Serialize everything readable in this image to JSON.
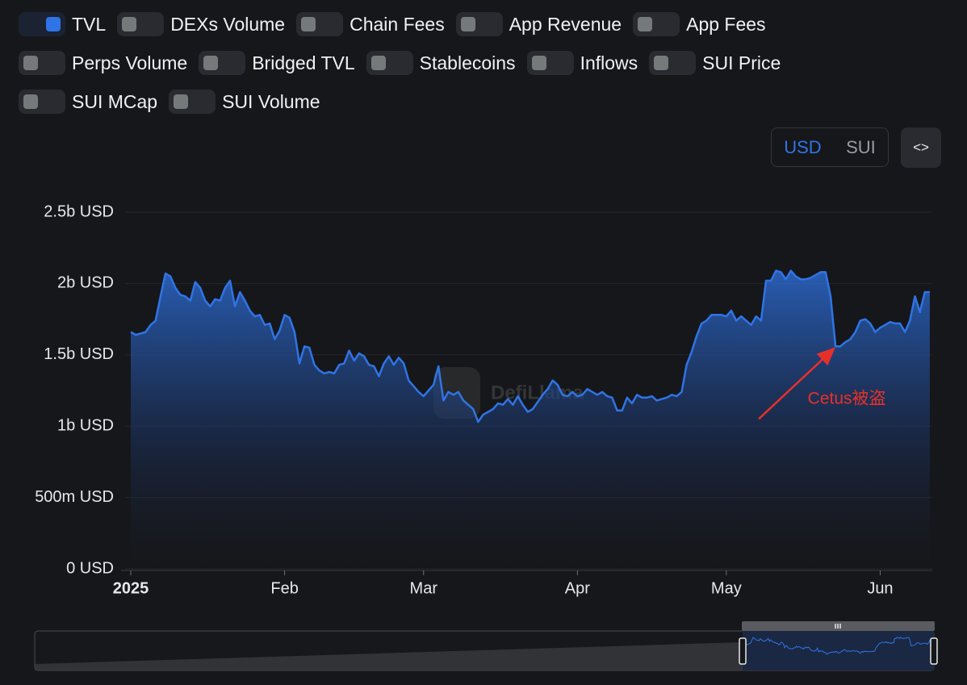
{
  "toggles": [
    {
      "label": "TVL",
      "on": true
    },
    {
      "label": "DEXs Volume",
      "on": false
    },
    {
      "label": "Chain Fees",
      "on": false
    },
    {
      "label": "App Revenue",
      "on": false
    },
    {
      "label": "App Fees",
      "on": false
    },
    {
      "label": "Perps Volume",
      "on": false
    },
    {
      "label": "Bridged TVL",
      "on": false
    },
    {
      "label": "Stablecoins",
      "on": false
    },
    {
      "label": "Inflows",
      "on": false
    },
    {
      "label": "SUI Price",
      "on": false
    },
    {
      "label": "SUI MCap",
      "on": false
    },
    {
      "label": "SUI Volume",
      "on": false
    }
  ],
  "currency_options": [
    {
      "label": "USD",
      "active": true
    },
    {
      "label": "SUI",
      "active": false
    }
  ],
  "embed_button": "<>",
  "chart_data": {
    "type": "area",
    "watermark": "DefiLlama",
    "color": "#2f74e6",
    "x": [
      0,
      1,
      2,
      3,
      4,
      5,
      6,
      7,
      8,
      9,
      10,
      11,
      12,
      13,
      14,
      15,
      16,
      17,
      18,
      19,
      20,
      21,
      22,
      23,
      24,
      25,
      26,
      27,
      28,
      29,
      30,
      31,
      32,
      33,
      34,
      35,
      36,
      37,
      38,
      39,
      40,
      41,
      42,
      43,
      44,
      45,
      46,
      47,
      48,
      49,
      50,
      51,
      52,
      53,
      54,
      55,
      56,
      57,
      58,
      59,
      60,
      61,
      62,
      63,
      64,
      65,
      66,
      67,
      68,
      69,
      70,
      71,
      72,
      73,
      74,
      75,
      76,
      77,
      78,
      79,
      80,
      81,
      82,
      83,
      84,
      85,
      86,
      87,
      88,
      89,
      90,
      91,
      92,
      93,
      94,
      95,
      96,
      97,
      98,
      99,
      100,
      101,
      102,
      103,
      104,
      105,
      106,
      107,
      108,
      109,
      110,
      111,
      112,
      113,
      114,
      115,
      116,
      117,
      118,
      119,
      120,
      121,
      122,
      123,
      124,
      125,
      126,
      127,
      128,
      129,
      130,
      131,
      132,
      133,
      134,
      135,
      136,
      137,
      138,
      139,
      140,
      141,
      142,
      143,
      144,
      145,
      146,
      147,
      148,
      149,
      150,
      151,
      152,
      153,
      154,
      155,
      156,
      157,
      158,
      159,
      160,
      161
    ],
    "values": [
      1660000000.0,
      1640000000.0,
      1650000000.0,
      1660000000.0,
      1710000000.0,
      1740000000.0,
      1910000000.0,
      2070000000.0,
      2050000000.0,
      1970000000.0,
      1920000000.0,
      1910000000.0,
      1880000000.0,
      2010000000.0,
      1970000000.0,
      1880000000.0,
      1840000000.0,
      1890000000.0,
      1880000000.0,
      1970000000.0,
      2020000000.0,
      1840000000.0,
      1940000000.0,
      1880000000.0,
      1810000000.0,
      1770000000.0,
      1780000000.0,
      1710000000.0,
      1720000000.0,
      1610000000.0,
      1670000000.0,
      1780000000.0,
      1760000000.0,
      1660000000.0,
      1440000000.0,
      1560000000.0,
      1550000000.0,
      1430000000.0,
      1390000000.0,
      1370000000.0,
      1380000000.0,
      1370000000.0,
      1430000000.0,
      1440000000.0,
      1530000000.0,
      1460000000.0,
      1510000000.0,
      1490000000.0,
      1430000000.0,
      1420000000.0,
      1350000000.0,
      1440000000.0,
      1490000000.0,
      1430000000.0,
      1480000000.0,
      1440000000.0,
      1320000000.0,
      1280000000.0,
      1240000000.0,
      1210000000.0,
      1250000000.0,
      1290000000.0,
      1420000000.0,
      1180000000.0,
      1240000000.0,
      1220000000.0,
      1240000000.0,
      1180000000.0,
      1150000000.0,
      1120000000.0,
      1030000000.0,
      1080000000.0,
      1100000000.0,
      1120000000.0,
      1160000000.0,
      1150000000.0,
      1190000000.0,
      1150000000.0,
      1210000000.0,
      1150000000.0,
      1100000000.0,
      1120000000.0,
      1170000000.0,
      1220000000.0,
      1260000000.0,
      1320000000.0,
      1290000000.0,
      1220000000.0,
      1210000000.0,
      1240000000.0,
      1210000000.0,
      1220000000.0,
      1260000000.0,
      1240000000.0,
      1220000000.0,
      1240000000.0,
      1210000000.0,
      1200000000.0,
      1110000000.0,
      1110000000.0,
      1200000000.0,
      1160000000.0,
      1220000000.0,
      1200000000.0,
      1200000000.0,
      1210000000.0,
      1180000000.0,
      1190000000.0,
      1200000000.0,
      1220000000.0,
      1210000000.0,
      1240000000.0,
      1430000000.0,
      1520000000.0,
      1630000000.0,
      1720000000.0,
      1740000000.0,
      1780000000.0,
      1780000000.0,
      1780000000.0,
      1770000000.0,
      1810000000.0,
      1740000000.0,
      1770000000.0,
      1740000000.0,
      1710000000.0,
      1770000000.0,
      1740000000.0,
      2020000000.0,
      2020000000.0,
      2090000000.0,
      2080000000.0,
      2030000000.0,
      2090000000.0,
      2050000000.0,
      2030000000.0,
      2030000000.0,
      2040000000.0,
      2060000000.0,
      2080000000.0,
      2080000000.0,
      1910000000.0,
      1560000000.0,
      1560000000.0,
      1590000000.0,
      1610000000.0,
      1660000000.0,
      1740000000.0,
      1750000000.0,
      1720000000.0,
      1660000000.0,
      1690000000.0,
      1710000000.0,
      1730000000.0,
      1720000000.0,
      1720000000.0,
      1660000000.0,
      1740000000.0,
      1910000000.0,
      1800000000.0,
      1940000000.0,
      1940000000.0
    ],
    "xlim": [
      -1.95,
      161.5
    ],
    "xticks": [
      {
        "value": 0,
        "label": "2025"
      },
      {
        "value": 31,
        "label": "Feb"
      },
      {
        "value": 59,
        "label": "Mar"
      },
      {
        "value": 90,
        "label": "Apr"
      },
      {
        "value": 120,
        "label": "May"
      },
      {
        "value": 151,
        "label": "Jun"
      }
    ],
    "ylim": [
      0,
      2500000000
    ],
    "yticks": [
      {
        "value": 0,
        "label": "0 USD"
      },
      {
        "value": 500000000,
        "label": "500m USD"
      },
      {
        "value": 1000000000,
        "label": "1b USD"
      },
      {
        "value": 1500000000,
        "label": "1.5b USD"
      },
      {
        "value": 2000000000,
        "label": "2b USD"
      },
      {
        "value": 2500000000,
        "label": "2.5b USD"
      }
    ],
    "grid": true,
    "annotations": [
      {
        "text": "Cetus被盗",
        "x": 142,
        "color": "#e8302a"
      }
    ]
  }
}
